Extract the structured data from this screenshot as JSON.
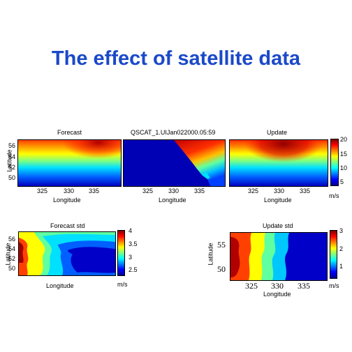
{
  "title": "The effect of satellite data",
  "panels": {
    "forecast": {
      "title": "Forecast",
      "xlabel": "Longitude",
      "ylabel": "Latitude",
      "xticks": [
        "325",
        "330",
        "335"
      ],
      "yticks": [
        "56",
        "54",
        "52",
        "50"
      ]
    },
    "qscat": {
      "title": "QSCAT_1.UIJan022000.05:59",
      "xlabel": "Longitude",
      "xticks": [
        "325",
        "330",
        "335"
      ]
    },
    "update": {
      "title": "Update",
      "xlabel": "Longitude",
      "xticks": [
        "325",
        "330",
        "335"
      ],
      "colorbar_ticks": [
        "20",
        "15",
        "10",
        "5"
      ],
      "colorbar_unit": "m/s"
    },
    "forecast_std": {
      "title": "Forecast std",
      "xlabel": "Longitude",
      "ylabel": "Latitude",
      "yticks": [
        "56",
        "54",
        "52",
        "50"
      ],
      "colorbar_ticks": [
        "4",
        "3.5",
        "3",
        "2.5"
      ],
      "colorbar_unit": "m/s"
    },
    "update_std": {
      "title": "Update std",
      "xlabel": "Longitude",
      "ylabel": "Latitude",
      "xticks": [
        "325",
        "330",
        "335"
      ],
      "yticks": [
        "55",
        "50"
      ],
      "colorbar_ticks": [
        "3",
        "2",
        "1"
      ],
      "colorbar_unit": "m/s"
    }
  },
  "colors": {
    "title": "#1a49c9",
    "jet_dark_red": "#7f0000",
    "jet_red": "#ff0000",
    "jet_orange": "#ff8000",
    "jet_yellow": "#ffff00",
    "jet_cyan": "#00ffff",
    "jet_blue": "#0000ff",
    "jet_dark_blue": "#00008f"
  }
}
